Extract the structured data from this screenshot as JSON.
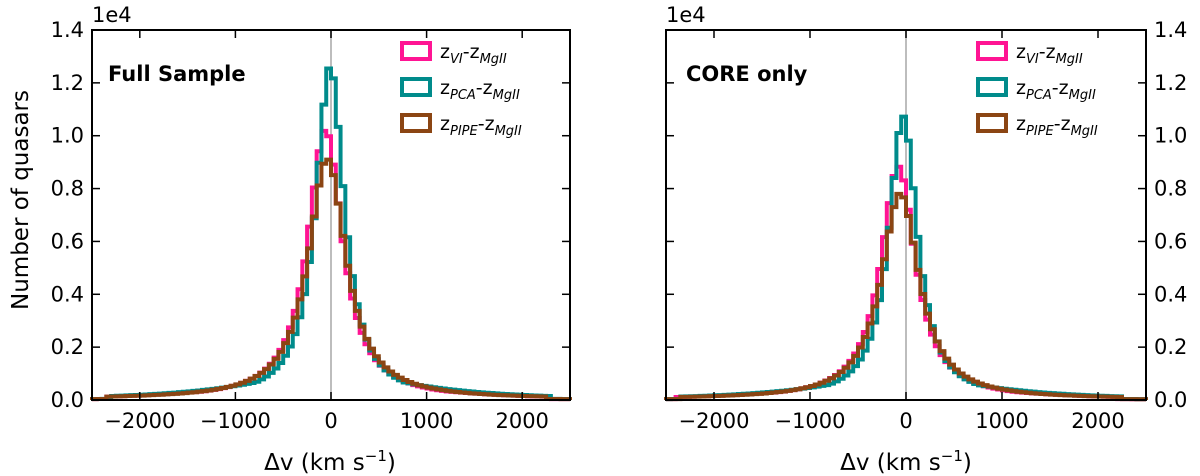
{
  "figure": {
    "ylabel": "Number of quasars",
    "xlabel": "Δv (km s",
    "xlabel_sup": "−1",
    "xlabel_close": ")",
    "scale_note": "1e4"
  },
  "chart_data": [
    {
      "type": "histogram",
      "title": "Full Sample",
      "xlim": [
        -2500,
        2500
      ],
      "ylim": [
        0,
        1.4
      ],
      "y_multiplier": "1e4",
      "x_ticks": [
        -2000,
        -1000,
        0,
        1000,
        2000
      ],
      "x_tick_labels": [
        "−2000",
        "−1000",
        "0",
        "1000",
        "2000"
      ],
      "y_ticks": [
        0.0,
        0.2,
        0.4,
        0.6,
        0.8,
        1.0,
        1.2,
        1.4
      ],
      "y_tick_labels": [
        "0.0",
        "0.2",
        "0.4",
        "0.6",
        "0.8",
        "1.0",
        "1.2",
        "1.4"
      ],
      "y_tick_side": "left",
      "vline_x": 0,
      "legend_position": "top-right",
      "legend": [
        {
          "main": "z",
          "sub1": "VI",
          "dash": "-z",
          "sub2": "MgII",
          "color": "#ff1493"
        },
        {
          "main": "z",
          "sub1": "PCA",
          "dash": "-z",
          "sub2": "MgII",
          "color": "#008b8b"
        },
        {
          "main": "z",
          "sub1": "PIPE",
          "dash": "-z",
          "sub2": "MgII",
          "color": "#8b4513"
        }
      ],
      "series": [
        {
          "name": "zVI-zMgII",
          "color": "#ff1493",
          "peak_x": -60,
          "peak": 1.02,
          "gamma": 220,
          "base": 0.0
        },
        {
          "name": "zPCA-zMgII",
          "color": "#008b8b",
          "peak_x": -10,
          "peak": 1.26,
          "gamma": 180,
          "base": 0.0
        },
        {
          "name": "zPIPE-zMgII",
          "color": "#8b4513",
          "peak_x": -40,
          "peak": 0.91,
          "gamma": 240,
          "base": 0.0
        }
      ]
    },
    {
      "type": "histogram",
      "title": "CORE only",
      "xlim": [
        -2500,
        2500
      ],
      "ylim": [
        0,
        1.4
      ],
      "y_multiplier": "1e4",
      "x_ticks": [
        -2000,
        -1000,
        0,
        1000,
        2000
      ],
      "x_tick_labels": [
        "−2000",
        "−1000",
        "0",
        "1000",
        "2000"
      ],
      "y_ticks": [
        0.0,
        0.2,
        0.4,
        0.6,
        0.8,
        1.0,
        1.2,
        1.4
      ],
      "y_tick_labels": [
        "0.0",
        "0.2",
        "0.4",
        "0.6",
        "0.8",
        "1.0",
        "1.2",
        "1.4"
      ],
      "y_tick_side": "right",
      "vline_x": 0,
      "legend_position": "top-right",
      "legend": [
        {
          "main": "z",
          "sub1": "VI",
          "dash": "-z",
          "sub2": "MgII",
          "color": "#ff1493"
        },
        {
          "main": "z",
          "sub1": "PCA",
          "dash": "-z",
          "sub2": "MgII",
          "color": "#008b8b"
        },
        {
          "main": "z",
          "sub1": "PIPE",
          "dash": "-z",
          "sub2": "MgII",
          "color": "#8b4513"
        }
      ],
      "series": [
        {
          "name": "zVI-zMgII",
          "color": "#ff1493",
          "peak_x": -80,
          "peak": 0.88,
          "gamma": 220,
          "base": 0.0
        },
        {
          "name": "zPCA-zMgII",
          "color": "#008b8b",
          "peak_x": -30,
          "peak": 1.07,
          "gamma": 180,
          "base": 0.0
        },
        {
          "name": "zPIPE-zMgII",
          "color": "#8b4513",
          "peak_x": -60,
          "peak": 0.78,
          "gamma": 240,
          "base": 0.0
        }
      ]
    }
  ]
}
